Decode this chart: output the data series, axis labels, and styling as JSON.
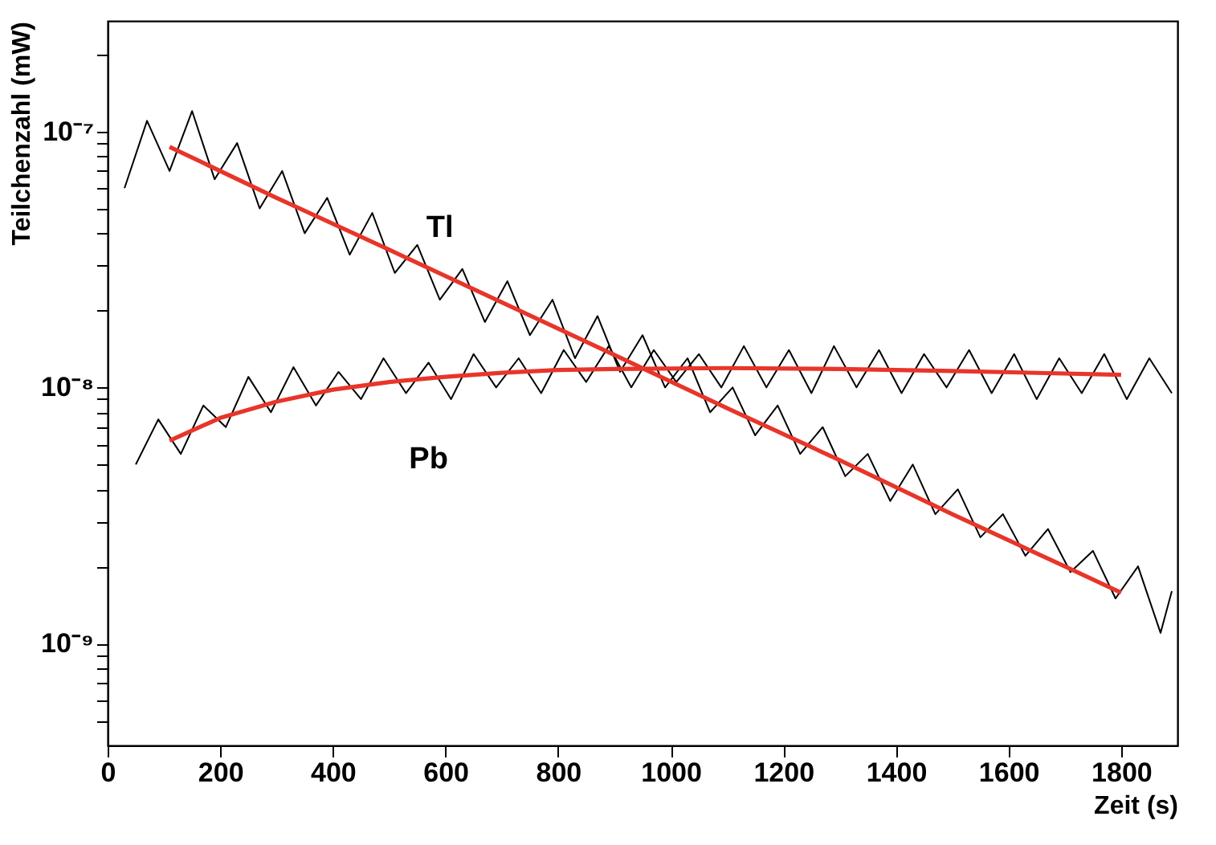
{
  "chart_data": {
    "type": "line",
    "xlabel": "Zeit (s)",
    "ylabel": "Teilchenzahl (mW)",
    "log": "y",
    "grid": false,
    "xlim": [
      0,
      1900
    ],
    "ylim": [
      4e-10,
      2.7e-07
    ],
    "xticks": [
      0,
      200,
      400,
      600,
      800,
      1000,
      1200,
      1400,
      1600,
      1800
    ],
    "yticks": [
      {
        "value": 5e-10,
        "label": null
      },
      {
        "value": 6e-10,
        "label": null
      },
      {
        "value": 7e-10,
        "label": null
      },
      {
        "value": 8e-10,
        "label": null
      },
      {
        "value": 9e-10,
        "label": null
      },
      {
        "value": 1e-09,
        "label": "10⁻⁹"
      },
      {
        "value": 2e-09,
        "label": null
      },
      {
        "value": 3e-09,
        "label": null
      },
      {
        "value": 4e-09,
        "label": null
      },
      {
        "value": 5e-09,
        "label": null
      },
      {
        "value": 6e-09,
        "label": null
      },
      {
        "value": 7e-09,
        "label": null
      },
      {
        "value": 8e-09,
        "label": null
      },
      {
        "value": 9e-09,
        "label": null
      },
      {
        "value": 1e-08,
        "label": "10⁻⁸"
      },
      {
        "value": 2e-08,
        "label": null
      },
      {
        "value": 3e-08,
        "label": null
      },
      {
        "value": 4e-08,
        "label": null
      },
      {
        "value": 5e-08,
        "label": null
      },
      {
        "value": 6e-08,
        "label": null
      },
      {
        "value": 7e-08,
        "label": null
      },
      {
        "value": 8e-08,
        "label": null
      },
      {
        "value": 9e-08,
        "label": null
      },
      {
        "value": 1e-07,
        "label": "10⁻⁷"
      },
      {
        "value": 2e-07,
        "label": null
      }
    ],
    "series": [
      {
        "name": "Tl",
        "color": "#000000",
        "x": [
          30,
          70,
          110,
          150,
          190,
          230,
          270,
          310,
          350,
          390,
          430,
          470,
          510,
          550,
          590,
          630,
          670,
          710,
          750,
          790,
          830,
          870,
          910,
          950,
          990,
          1030,
          1070,
          1110,
          1150,
          1190,
          1230,
          1270,
          1310,
          1350,
          1390,
          1430,
          1470,
          1510,
          1550,
          1590,
          1630,
          1670,
          1710,
          1750,
          1790,
          1830,
          1870,
          1890
        ],
        "values": [
          6e-08,
          1.1e-07,
          7e-08,
          1.2e-07,
          6.5e-08,
          9e-08,
          5e-08,
          7e-08,
          4e-08,
          5.5e-08,
          3.3e-08,
          4.8e-08,
          2.8e-08,
          3.6e-08,
          2.2e-08,
          2.9e-08,
          1.8e-08,
          2.6e-08,
          1.6e-08,
          2.2e-08,
          1.3e-08,
          1.9e-08,
          1.15e-08,
          1.6e-08,
          1e-08,
          1.3e-08,
          8e-09,
          1e-08,
          6.5e-09,
          8.5e-09,
          5.5e-09,
          7e-09,
          4.5e-09,
          5.5e-09,
          3.6e-09,
          5e-09,
          3.2e-09,
          4e-09,
          2.6e-09,
          3.2e-09,
          2.2e-09,
          2.8e-09,
          1.9e-09,
          2.3e-09,
          1.5e-09,
          2e-09,
          1.1e-09,
          1.6e-09
        ]
      },
      {
        "name": "Pb",
        "color": "#000000",
        "x": [
          50,
          90,
          130,
          170,
          210,
          250,
          290,
          330,
          370,
          410,
          450,
          490,
          530,
          570,
          610,
          650,
          690,
          730,
          770,
          810,
          850,
          890,
          930,
          970,
          1010,
          1050,
          1090,
          1130,
          1170,
          1210,
          1250,
          1290,
          1330,
          1370,
          1410,
          1450,
          1490,
          1530,
          1570,
          1610,
          1650,
          1690,
          1730,
          1770,
          1810,
          1850,
          1890
        ],
        "values": [
          5e-09,
          7.5e-09,
          5.5e-09,
          8.5e-09,
          7e-09,
          1.1e-08,
          8e-09,
          1.2e-08,
          8.5e-09,
          1.15e-08,
          9e-09,
          1.3e-08,
          9.5e-09,
          1.25e-08,
          9e-09,
          1.35e-08,
          1e-08,
          1.3e-08,
          9.5e-09,
          1.4e-08,
          1.05e-08,
          1.45e-08,
          1e-08,
          1.4e-08,
          1.05e-08,
          1.35e-08,
          1e-08,
          1.45e-08,
          1e-08,
          1.4e-08,
          9.5e-09,
          1.45e-08,
          1e-08,
          1.4e-08,
          9.5e-09,
          1.35e-08,
          1e-08,
          1.4e-08,
          9.5e-09,
          1.35e-08,
          9e-09,
          1.3e-08,
          9.5e-09,
          1.35e-08,
          9e-09,
          1.3e-08,
          9.5e-09
        ]
      },
      {
        "color": "#e8352a",
        "x": [
          110,
          300,
          500,
          700,
          900,
          1100,
          1300,
          1500,
          1700,
          1800
        ],
        "values": [
          8.7e-08,
          5.5e-08,
          3.45e-08,
          2.15e-08,
          1.34e-08,
          8.3e-09,
          5.2e-09,
          3.2e-09,
          2e-09,
          1.58e-09
        ]
      },
      {
        "color": "#e8352a",
        "x": [
          110,
          200,
          300,
          400,
          500,
          600,
          700,
          800,
          900,
          1100,
          1300,
          1500,
          1800
        ],
        "values": [
          6.2e-09,
          7.6e-09,
          8.8e-09,
          9.8e-09,
          1.05e-08,
          1.1e-08,
          1.14e-08,
          1.17e-08,
          1.18e-08,
          1.19e-08,
          1.18e-08,
          1.16e-08,
          1.12e-08
        ]
      }
    ]
  }
}
